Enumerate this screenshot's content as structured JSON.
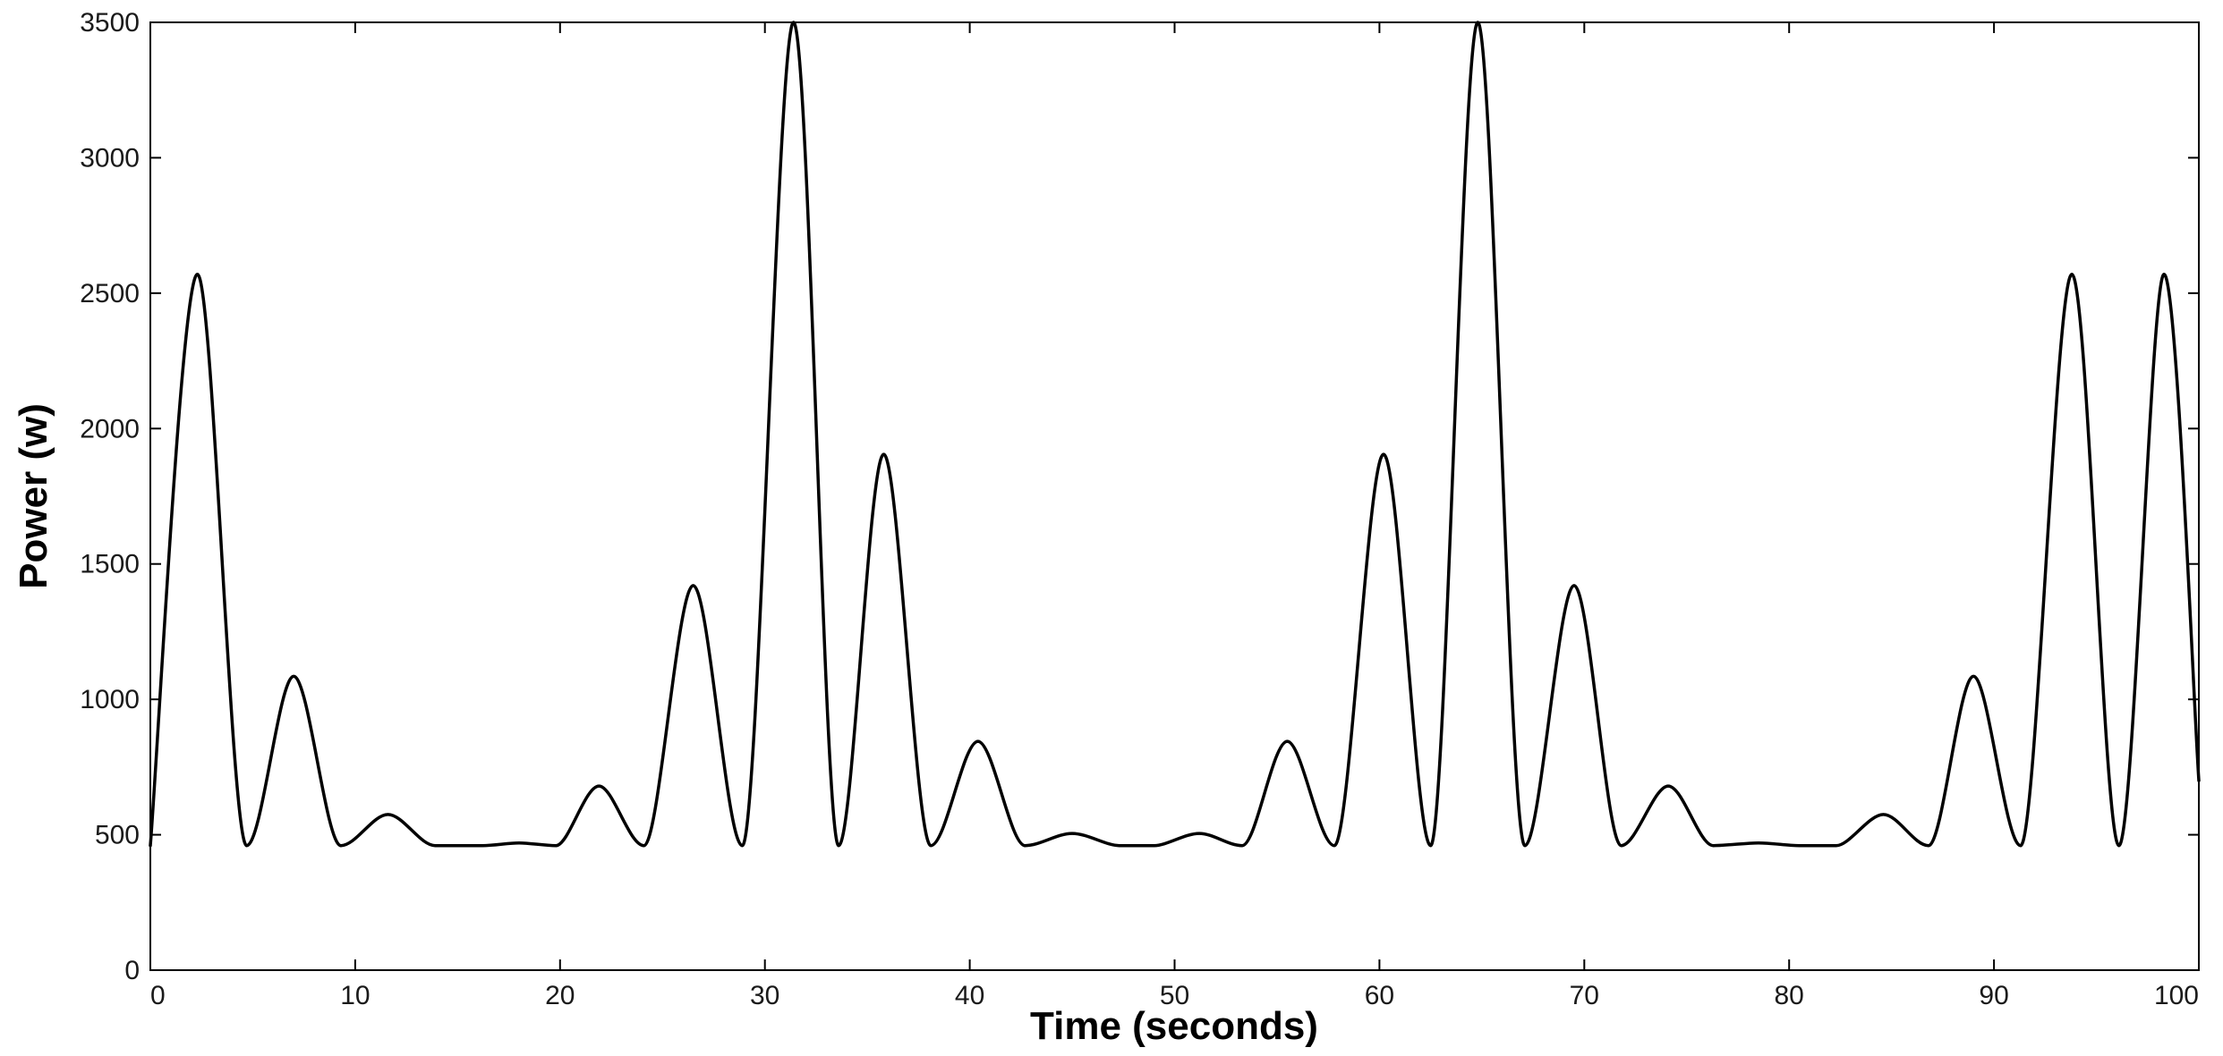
{
  "chart_data": {
    "type": "line",
    "title": "",
    "xlabel": "Time (seconds)",
    "ylabel": "Power (w)",
    "xlim": [
      0,
      100
    ],
    "ylim": [
      0,
      3500
    ],
    "xticks": [
      0,
      10,
      20,
      30,
      40,
      50,
      60,
      70,
      80,
      90,
      100
    ],
    "yticks": [
      0,
      500,
      1000,
      1500,
      2000,
      2500,
      3000,
      3500
    ],
    "grid": false,
    "legend": "none",
    "line_color": "#000000",
    "series": [
      {
        "x": [
          0,
          2.3,
          4.7,
          7.0,
          9.3,
          11.6,
          13.9,
          16.2,
          18.0,
          19.8,
          21.9,
          24.1,
          26.5,
          28.9,
          31.4,
          33.6,
          35.8,
          38.1,
          40.4,
          42.7,
          45.0,
          47.3,
          49.0,
          51.2,
          53.3,
          55.5,
          57.8,
          60.2,
          62.5,
          64.8,
          67.1,
          69.5,
          71.8,
          74.1,
          76.3,
          78.5,
          80.5,
          82.3,
          84.6,
          86.8,
          89.0,
          91.3,
          93.8,
          96.1,
          98.3,
          100.0
        ],
        "y": [
          460,
          2570,
          460,
          1085,
          460,
          575,
          460,
          460,
          470,
          460,
          680,
          460,
          1420,
          460,
          3500,
          460,
          1905,
          460,
          845,
          460,
          505,
          460,
          460,
          505,
          460,
          845,
          460,
          1905,
          460,
          3500,
          460,
          1420,
          460,
          680,
          460,
          470,
          460,
          460,
          575,
          460,
          1085,
          460,
          2570,
          460,
          2570,
          700
        ]
      }
    ]
  }
}
